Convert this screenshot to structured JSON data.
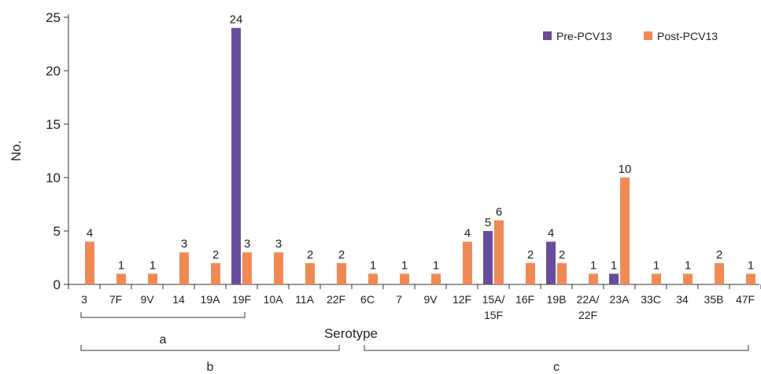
{
  "chart_data": {
    "type": "bar",
    "xlabel": "Serotype",
    "ylabel": "No.",
    "ylim": [
      0,
      25
    ],
    "yticks": [
      0,
      5,
      10,
      15,
      20,
      25
    ],
    "grid": false,
    "legend_position": "top-right",
    "categories": [
      "3",
      "7F",
      "9V",
      "14",
      "19A",
      "19F",
      "10A",
      "11A",
      "22F",
      "6C",
      "7",
      "9V",
      "12F",
      "15A/\n15F",
      "16F",
      "19B",
      "22A/\n22F",
      "23A",
      "33C",
      "34",
      "35B",
      "47F"
    ],
    "series": [
      {
        "name": "Pre-PCV13",
        "color": "#6a4c9c",
        "values": [
          0,
          0,
          0,
          0,
          0,
          24,
          0,
          0,
          0,
          0,
          0,
          0,
          0,
          5,
          0,
          4,
          0,
          1,
          0,
          0,
          0,
          0
        ]
      },
      {
        "name": "Post-PCV13",
        "color": "#f08a55",
        "values": [
          4,
          1,
          1,
          3,
          2,
          3,
          3,
          2,
          2,
          1,
          1,
          1,
          4,
          6,
          2,
          2,
          1,
          10,
          1,
          1,
          2,
          1
        ]
      }
    ],
    "groups": [
      {
        "label": "a",
        "from": 0,
        "to": 5
      },
      {
        "label": "b",
        "from": 0,
        "to": 8
      },
      {
        "label": "c",
        "from": 9,
        "to": 21
      }
    ]
  }
}
